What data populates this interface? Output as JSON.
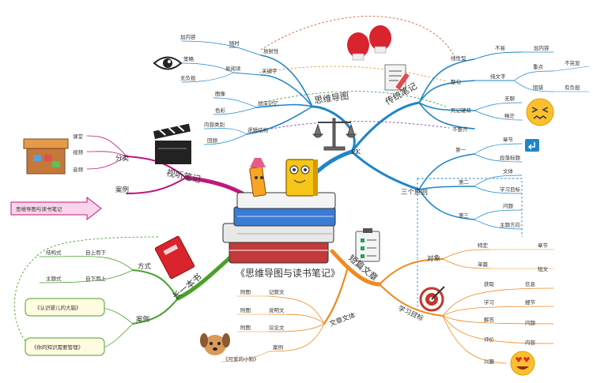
{
  "center": {
    "title": "《思维导图与读书笔记》"
  },
  "colors": {
    "blue": "#1e86c8",
    "green": "#4aa02c",
    "orange": "#f08a1e",
    "magenta": "#c0187c",
    "dotted_red": "#e05a2e",
    "dotted_purple": "#8a3ab9"
  },
  "branches": {
    "pk": {
      "label": "PK"
    },
    "mindmap": {
      "label": "思维导图",
      "items": [
        {
          "label": "放射性",
          "subs": [
            {
              "label": "随时"
            },
            {
              "label": "加内容"
            }
          ]
        },
        {
          "label": "关键字",
          "subs": [
            {
              "label": "易阅读"
            },
            {
              "label": "策略"
            },
            {
              "label": "无负担"
            }
          ]
        },
        {
          "label": "加深记忆",
          "subs": [
            {
              "label": "图像"
            },
            {
              "label": "色彩"
            }
          ]
        },
        {
          "label": "逻辑结构",
          "subs": [
            {
              "label": "内容类别"
            },
            {
              "label": "回顾"
            }
          ]
        }
      ]
    },
    "notes": {
      "label": "传统笔记",
      "items": [
        {
          "label": "线性型",
          "subs": [
            {
              "label": "不易"
            },
            {
              "label": "加内容"
            }
          ]
        },
        {
          "label": "整句",
          "subs": [
            {
              "label": "纯文字"
            },
            {
              "label": "重点"
            },
            {
              "label": "不突显"
            },
            {
              "label": "阻错"
            },
            {
              "label": "有负担"
            }
          ]
        },
        {
          "label": "死记硬背",
          "subs": [
            {
              "label": "无聊"
            },
            {
              "label": "畅茫"
            }
          ]
        },
        {
          "label": "不整齐"
        }
      ]
    },
    "rules": {
      "label": "三个原则",
      "items": [
        {
          "label": "第一",
          "subs": [
            {
              "label": "章节"
            },
            {
              "label": "段落标题"
            }
          ]
        },
        {
          "label": "第二",
          "subs": [
            {
              "label": "文体"
            },
            {
              "label": "学习目标"
            }
          ]
        },
        {
          "label": "第三",
          "subs": [
            {
              "label": "问题"
            },
            {
              "label": "主题方向"
            }
          ]
        }
      ]
    },
    "video": {
      "label": "视听笔记",
      "items": [
        {
          "label": "分类",
          "subs": [
            {
              "label": "课堂"
            },
            {
              "label": "视频"
            },
            {
              "label": "音频"
            }
          ]
        },
        {
          "label": "案例"
        }
      ],
      "callout": "思维导图与读书笔记"
    },
    "long": {
      "label": "长一本书",
      "items": [
        {
          "label": "方式",
          "subs": [
            {
              "label": "结构式"
            },
            {
              "label": "自上而下"
            },
            {
              "label": "主题式"
            },
            {
              "label": "自下而上"
            }
          ]
        },
        {
          "label": "案例",
          "subs": [
            {
              "label": "《认识婴儿的大脑》"
            },
            {
              "label": "《你的知识需要管理》"
            }
          ]
        }
      ]
    },
    "short": {
      "label": "短篇文章",
      "items": [
        {
          "label": "对象",
          "subs": [
            {
              "label": "特定"
            },
            {
              "label": "章节"
            },
            {
              "label": "单篇"
            },
            {
              "label": "短文"
            }
          ]
        },
        {
          "label": "学习目标",
          "subs": [
            {
              "label": "获取"
            },
            {
              "label": "信息"
            },
            {
              "label": "学习"
            },
            {
              "label": "细节"
            },
            {
              "label": "解答"
            },
            {
              "label": "问题"
            },
            {
              "label": "评价"
            },
            {
              "label": "内容"
            },
            {
              "label": "兴趣"
            }
          ]
        },
        {
          "label": "文章文体",
          "subs": [
            {
              "label": "记叙文"
            },
            {
              "label": "附图"
            },
            {
              "label": "说明文"
            },
            {
              "label": "附图"
            },
            {
              "label": "议论文"
            },
            {
              "label": "附图"
            },
            {
              "label": "案例"
            },
            {
              "label": "《可爱的小狗》"
            }
          ]
        }
      ]
    }
  }
}
